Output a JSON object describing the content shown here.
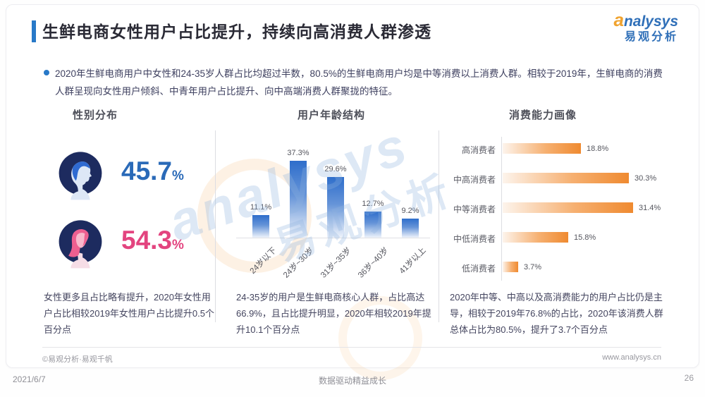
{
  "header": {
    "title": "生鲜电商女性用户占比提升，持续向高消费人群渗透",
    "logo": {
      "a": "a",
      "rest": "nalysys",
      "cn": "易观分析"
    }
  },
  "summary": "2020年生鲜电商用户中女性和24-35岁人群占比均超过半数，80.5%的生鲜电商用户均是中等消费以上消费人群。相较于2019年，生鲜电商的消费人群呈现向女性用户倾斜、中青年用户占比提升、向中高端消费人群聚拢的特征。",
  "chart_data": [
    {
      "type": "pictogram",
      "title": "性别分布",
      "categories": [
        "male",
        "female"
      ],
      "values": [
        45.7,
        54.3
      ],
      "value_labels": [
        "45.7",
        "54.3"
      ],
      "unit": "%",
      "colors": {
        "male": "#2a6ab8",
        "female": "#e3447f"
      }
    },
    {
      "type": "bar",
      "title": "用户年龄结构",
      "categories": [
        "24岁以下",
        "24岁~30岁",
        "31岁~35岁",
        "36岁~40岁",
        "41岁以上"
      ],
      "values": [
        11.1,
        37.3,
        29.6,
        12.7,
        9.2
      ],
      "value_labels": [
        "11.1%",
        "37.3%",
        "29.6%",
        "12.7%",
        "9.2%"
      ],
      "unit": "%",
      "ylim": [
        0,
        40
      ],
      "bar_gradient": [
        "#2e6ecb",
        "#eef3fb"
      ],
      "grid": false,
      "legend": "none"
    },
    {
      "type": "bar",
      "orientation": "horizontal",
      "title": "消费能力画像",
      "categories": [
        "高消费者",
        "中高消费者",
        "中等消费者",
        "中低消费者",
        "低消费者"
      ],
      "values": [
        18.8,
        30.3,
        31.4,
        15.8,
        3.7
      ],
      "value_labels": [
        "18.8%",
        "30.3%",
        "31.4%",
        "15.8%",
        "3.7%"
      ],
      "unit": "%",
      "xlim": [
        0,
        35
      ],
      "bar_gradient": [
        "#fdf4ec",
        "#ef8a30"
      ],
      "grid": false,
      "legend": "none"
    }
  ],
  "notes": {
    "gender": "女性更多且占比略有提升，2020年女性用户占比相较2019年女性用户占比提升0.5个百分点",
    "age": "24-35岁的用户是生鲜电商核心人群，占比高达66.9%，且占比提升明显，2020年相较2019年提升10.1个百分点",
    "consumption": "2020年中等、中高以及高消费能力的用户占比仍是主导，相较于2019年76.8%的占比，2020年该消费人群总体占比为80.5%，提升了3.7个百分点"
  },
  "watermark": {
    "line1": "analysys",
    "line2": "易观分析"
  },
  "footer": {
    "copyright": "©易观分析·易观千帆",
    "website": "www.analysys.cn",
    "date": "2021/6/7",
    "slogan": "数据驱动精益成长",
    "page": "26"
  }
}
